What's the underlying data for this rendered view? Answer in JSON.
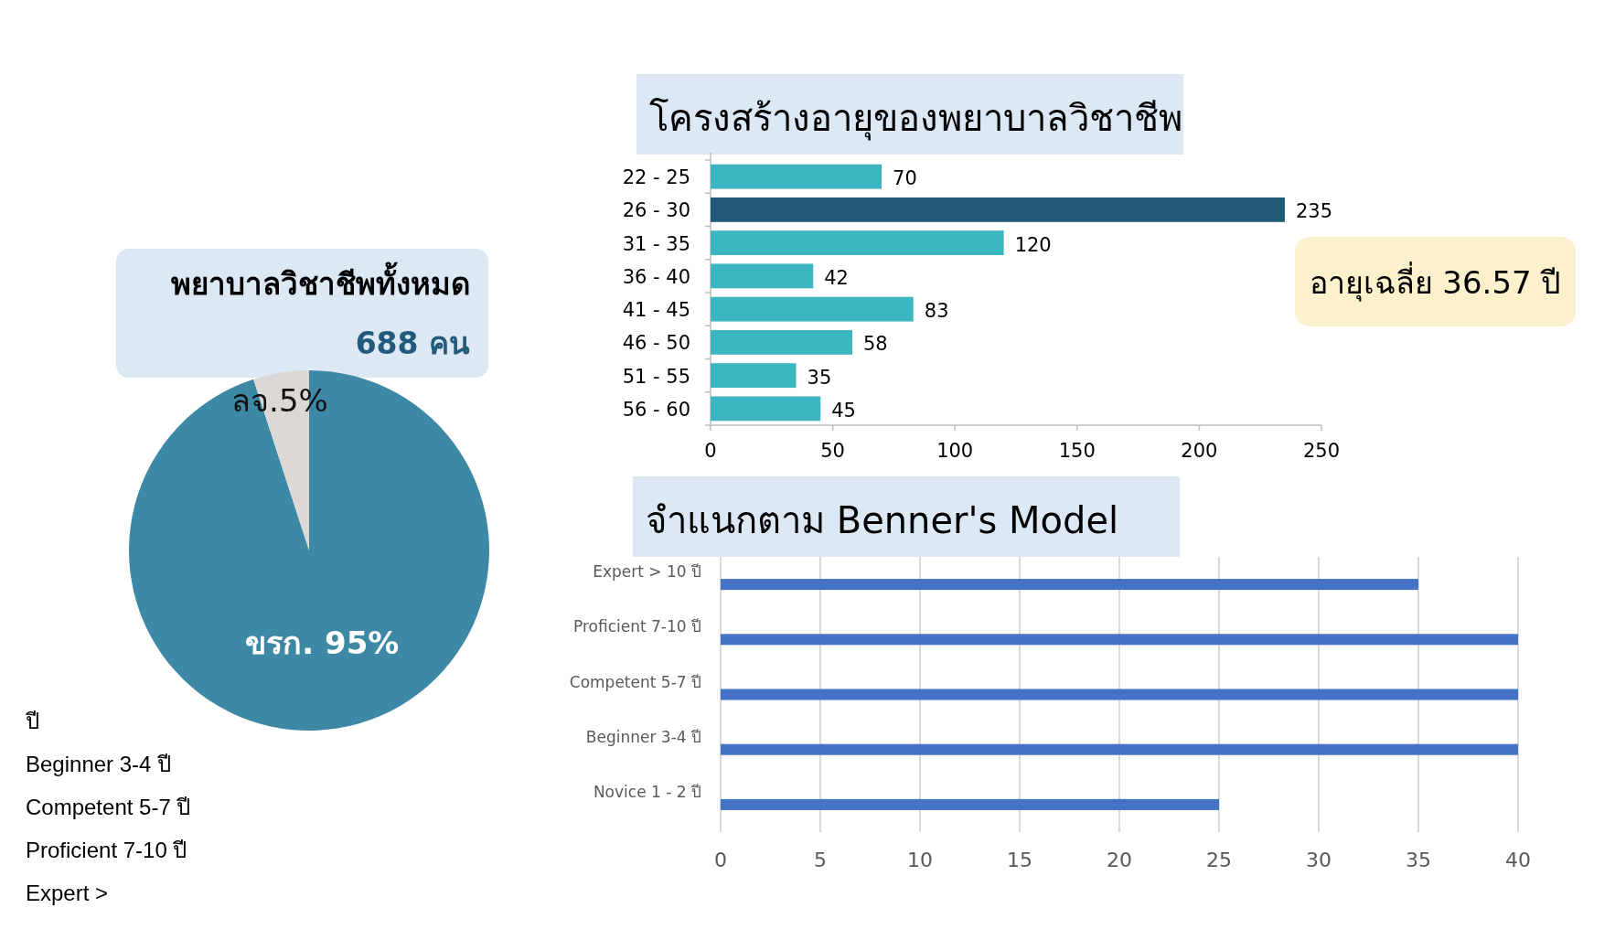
{
  "chart_data": [
    {
      "type": "pie",
      "title": "พยาบาลวิชาชีพทั้งหมด",
      "subtitle": "688 คน",
      "categories": [
        "ขรก.",
        "ลจ."
      ],
      "values": [
        95,
        5
      ],
      "value_labels": [
        "95%",
        "5%"
      ],
      "colors": [
        "#3d88a4",
        "#dcd8d5"
      ],
      "annotations": [
        "ปี",
        "Beginner 3-4 ปี",
        "Competent 5-7 ปี",
        "Proficient 7-10 ปี",
        "Expert >"
      ]
    },
    {
      "type": "bar",
      "orientation": "horizontal",
      "title": "โครงสร้างอายุของพยาบาลวิชาชีพ",
      "categories": [
        "22 - 25",
        "26 - 30",
        "31 - 35",
        "36 - 40",
        "41 - 45",
        "46 - 50",
        "51 - 55",
        "56 - 60"
      ],
      "values": [
        70,
        235,
        120,
        42,
        83,
        58,
        35,
        45
      ],
      "colors": [
        "#3bb6c0",
        "#225a7b",
        "#3bb6c0",
        "#3bb6c0",
        "#3bb6c0",
        "#3bb6c0",
        "#3bb6c0",
        "#3bb6c0"
      ],
      "xlim": [
        0,
        250
      ],
      "xticks": [
        0,
        50,
        100,
        150,
        200,
        250
      ],
      "data_labels": true,
      "annotations": [
        "อายุเฉลี่ย 36.57 ปี"
      ]
    },
    {
      "type": "bar",
      "orientation": "horizontal",
      "title": "จำแนกตาม Benner's Model",
      "categories": [
        "Expert > 10 ปี",
        "Proficient 7-10 ปี",
        "Competent 5-7 ปี",
        "Beginner 3-4 ปี",
        "Novice 1 - 2 ปี"
      ],
      "values": [
        35,
        40,
        40,
        40,
        25
      ],
      "color": "#4472c4",
      "xlim": [
        0,
        40
      ],
      "xticks": [
        0,
        5,
        10,
        15,
        20,
        25,
        30,
        35,
        40
      ],
      "grid": "x"
    }
  ]
}
